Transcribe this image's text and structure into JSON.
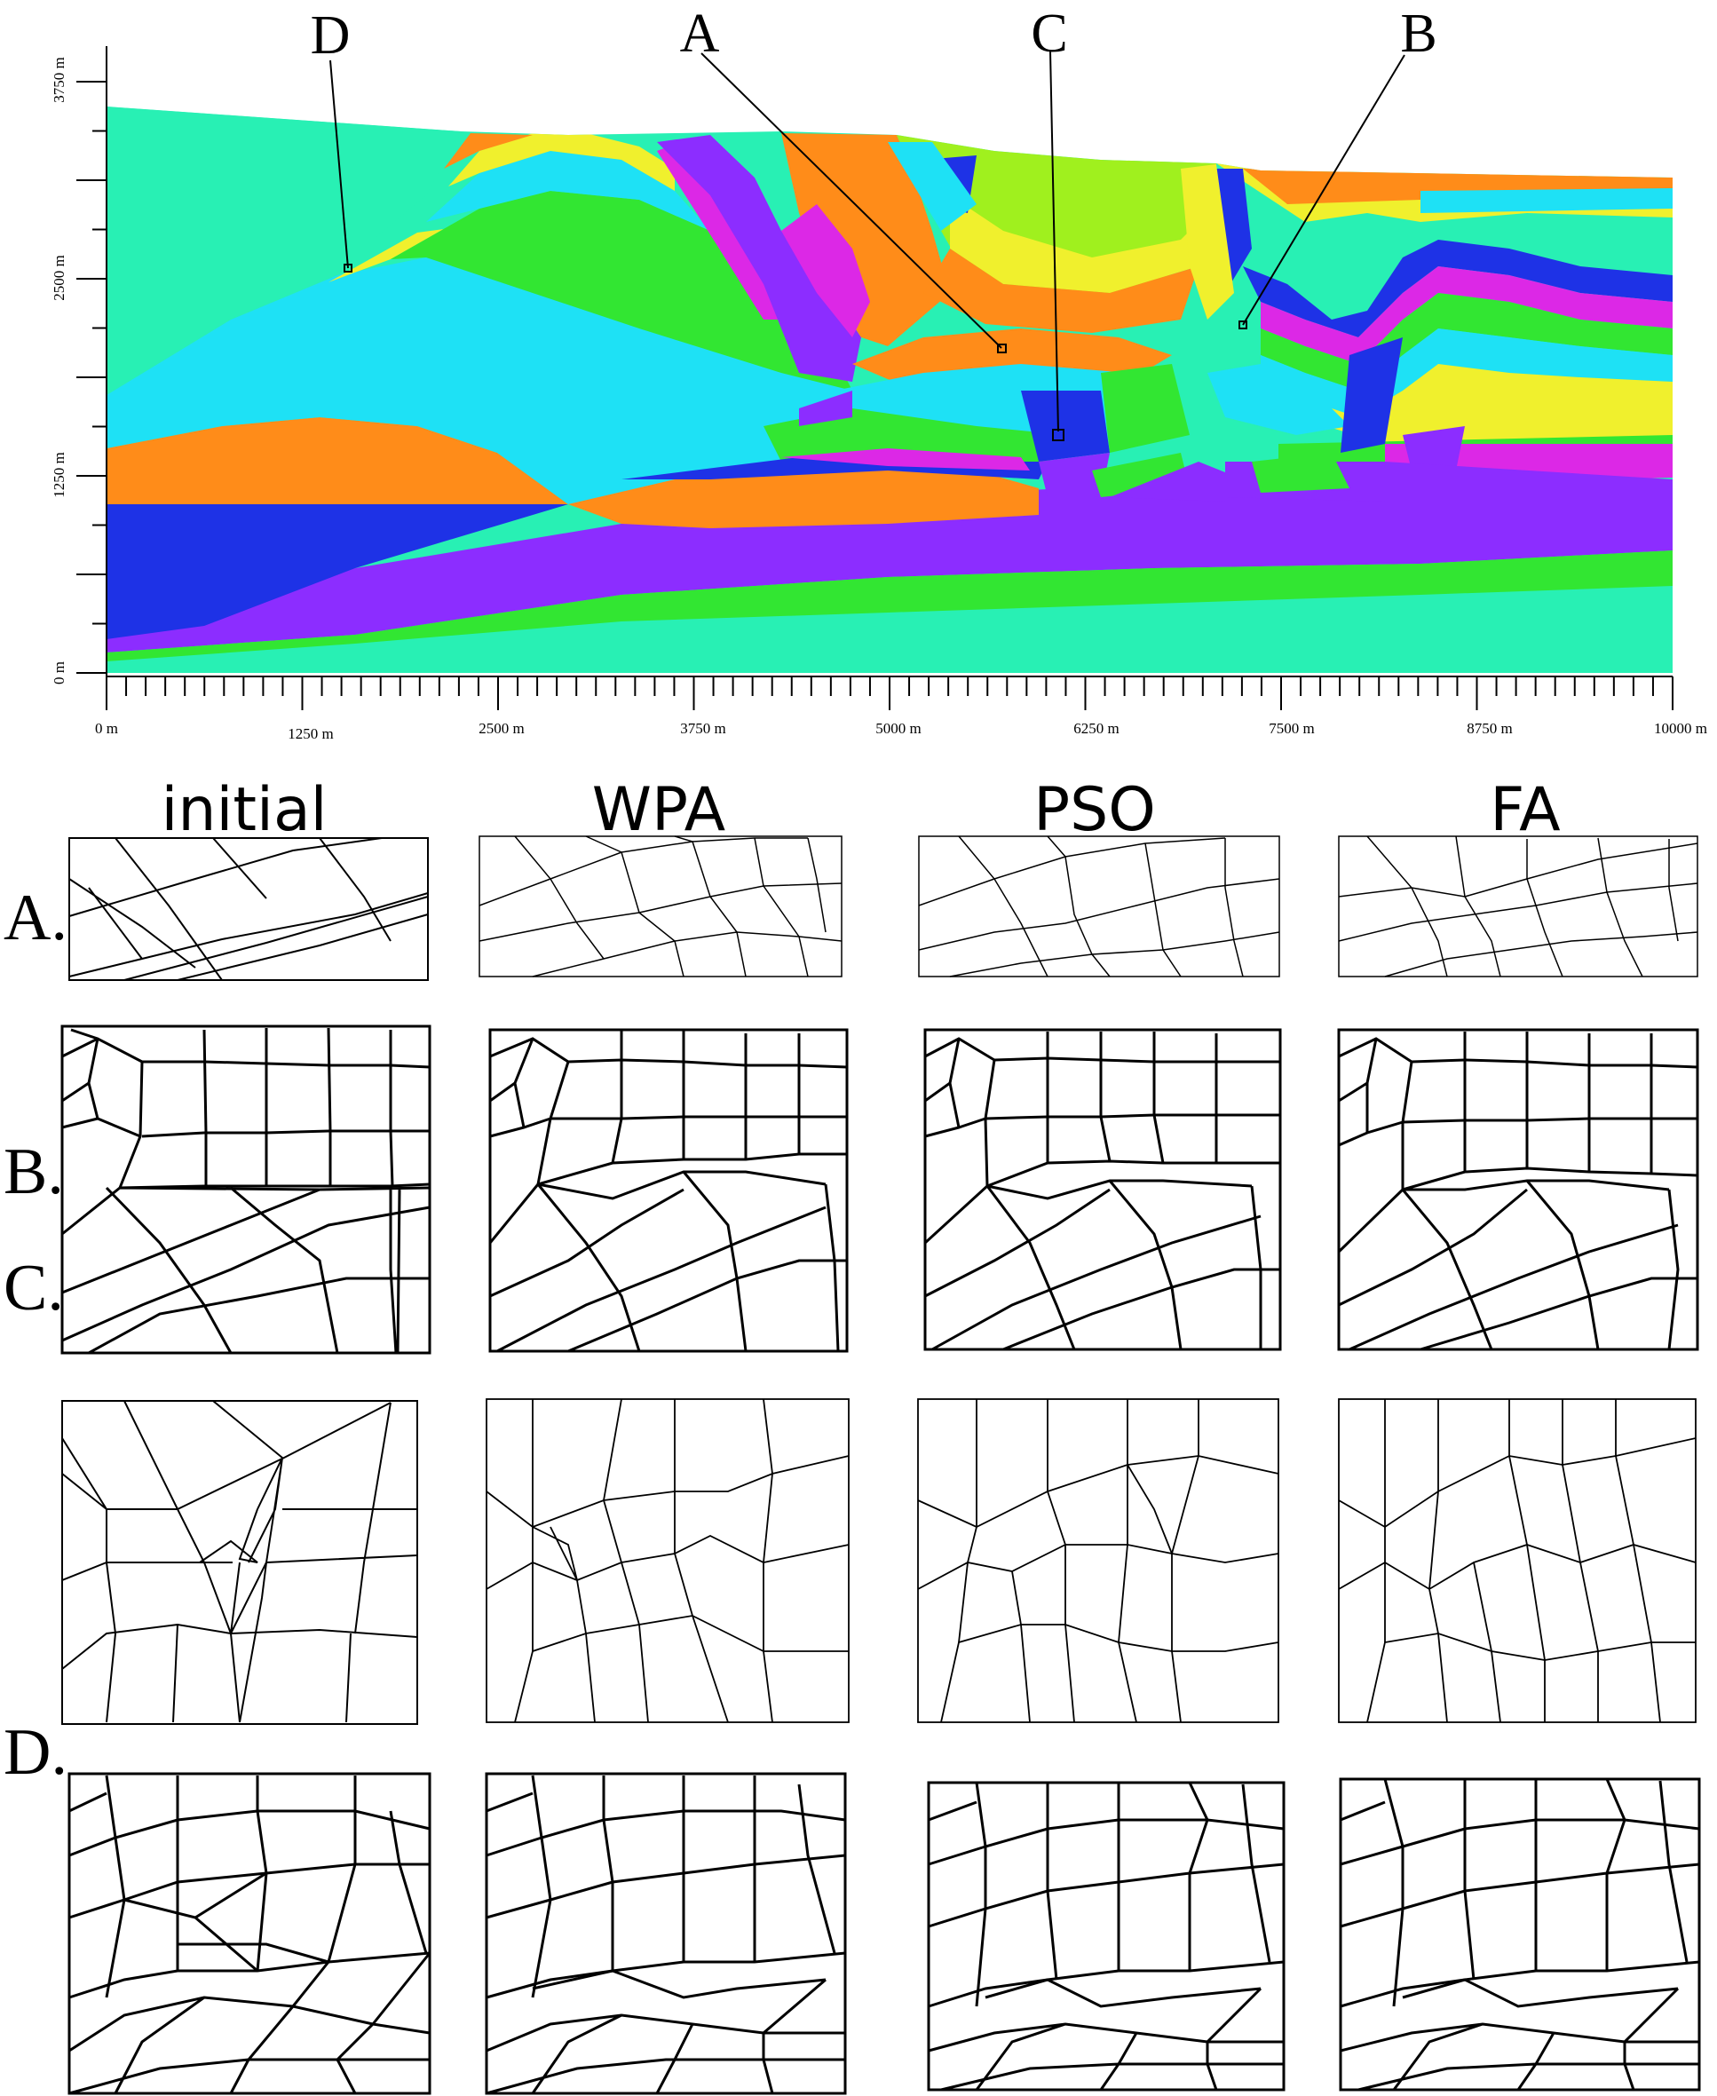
{
  "main_figure": {
    "callouts": [
      "D",
      "A",
      "C",
      "B"
    ],
    "y_axis": {
      "tick_labels": [
        "3750 m",
        "2500 m",
        "1250 m",
        "0 m"
      ]
    },
    "x_axis": {
      "tick_labels": [
        "0 m",
        "1250 m",
        "2500 m",
        "3750 m",
        "5000 m",
        "6250 m",
        "7500 m",
        "8750 m",
        "10000 m"
      ]
    }
  },
  "comparison": {
    "column_headers": [
      "initial",
      "WPA",
      "PSO",
      "FA"
    ],
    "row_labels": [
      "A.",
      "B.",
      "C.",
      "D."
    ]
  },
  "colors": {
    "teal": "#28f0b4",
    "cyan": "#1ee1f5",
    "green": "#32e632",
    "orange": "#ff8c19",
    "purple": "#8c2dff",
    "blue": "#1e32e6",
    "magenta": "#dc28e6",
    "yellow": "#f0f02d",
    "lime": "#a0f01e"
  }
}
